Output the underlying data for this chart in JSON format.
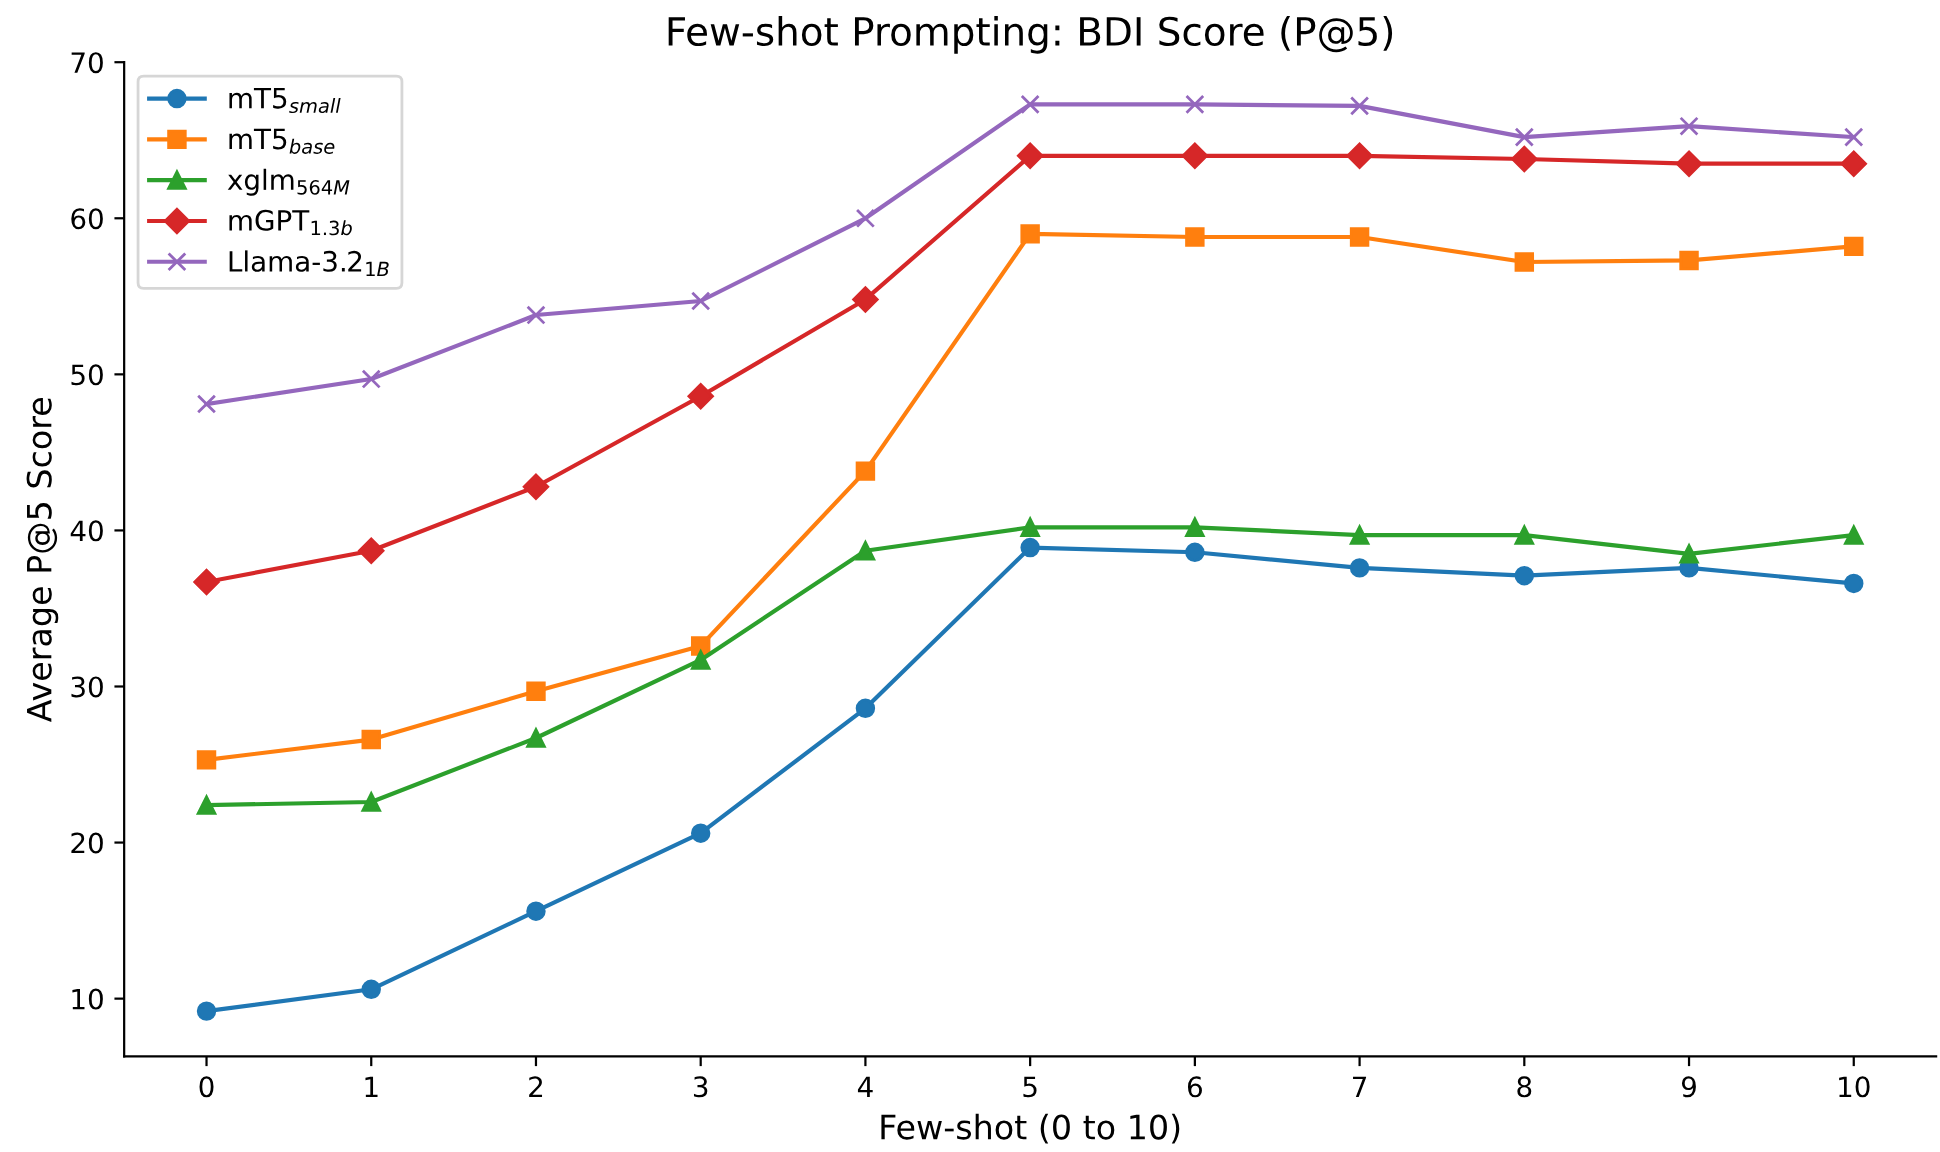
{
  "chart_data": {
    "type": "line",
    "title": "Few-shot Prompting: BDI Score (P@5)",
    "xlabel": "Few-shot (0 to 10)",
    "ylabel": "Average P@5 Score",
    "x": [
      0,
      1,
      2,
      3,
      4,
      5,
      6,
      7,
      8,
      9,
      10
    ],
    "series": [
      {
        "name": "mT5$_{small}$",
        "color": "#1f77b4",
        "marker": "circle",
        "values": [
          9.2,
          10.6,
          15.6,
          20.6,
          28.6,
          38.9,
          38.6,
          37.6,
          37.1,
          37.6,
          36.6
        ]
      },
      {
        "name": "mT5$_{base}$",
        "color": "#ff7f0e",
        "marker": "square",
        "values": [
          25.3,
          26.6,
          29.7,
          32.6,
          43.8,
          59.0,
          58.8,
          58.8,
          57.2,
          57.3,
          58.2
        ]
      },
      {
        "name": "xglm$_{564M}$",
        "color": "#2ca02c",
        "marker": "triangle",
        "values": [
          22.4,
          22.6,
          26.7,
          31.7,
          38.7,
          40.2,
          40.2,
          39.7,
          39.7,
          38.5,
          39.7
        ]
      },
      {
        "name": "mGPT$_{1.3b}$",
        "color": "#d62728",
        "marker": "diamond",
        "values": [
          36.7,
          38.7,
          42.8,
          48.6,
          54.8,
          64.0,
          64.0,
          64.0,
          63.8,
          63.5,
          63.5
        ]
      },
      {
        "name": "Llama-3.2$_{1B}$",
        "color": "#9467bd",
        "marker": "cross",
        "values": [
          48.1,
          49.7,
          53.8,
          54.7,
          60.0,
          67.3,
          67.3,
          67.2,
          65.2,
          65.9,
          65.2
        ]
      }
    ],
    "xlim": [
      -0.5,
      10.5
    ],
    "xticks": [
      0,
      1,
      2,
      3,
      4,
      5,
      6,
      7,
      8,
      9,
      10
    ],
    "ylim": [
      6.3,
      70
    ],
    "yticks": [
      10,
      20,
      30,
      40,
      50,
      60,
      70
    ],
    "grid": false,
    "legend": "top left",
    "line_style": "solid"
  }
}
